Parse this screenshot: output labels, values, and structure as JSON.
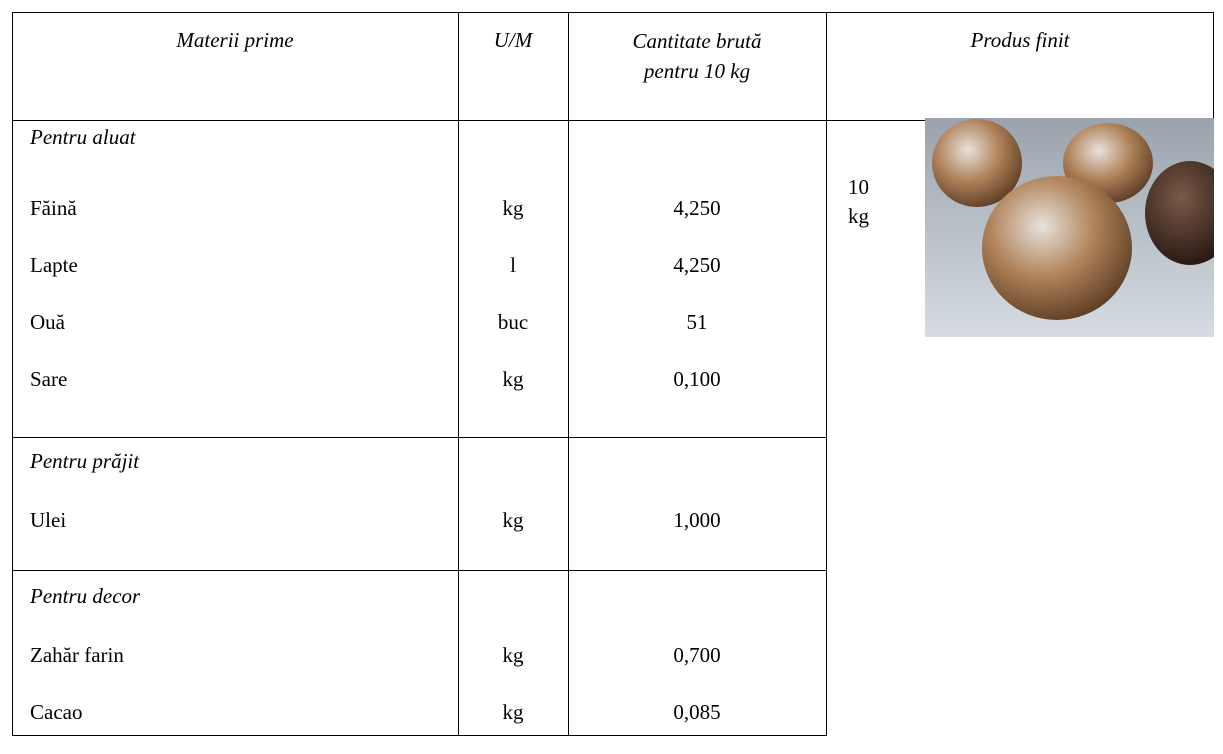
{
  "table": {
    "header": [
      "Materii prime",
      "U/M",
      "Cantitate brută pentru 10 kg",
      "Produs finit"
    ],
    "groups": [
      {
        "title": "Pentru aluat",
        "rows": [
          [
            "Făină",
            "kg",
            "4,250"
          ],
          [
            "Lapte",
            "l",
            "4,250"
          ],
          [
            "Ouă",
            "buc",
            "51"
          ],
          [
            "Sare",
            "kg",
            "0,100"
          ]
        ]
      },
      {
        "title": "Pentru prăjit",
        "rows": [
          [
            "Ulei",
            "kg",
            "1,000"
          ]
        ]
      },
      {
        "title": "Pentru decor",
        "rows": [
          [
            "Zahăr farin",
            "kg",
            "0,700"
          ],
          [
            "Cacao",
            "kg",
            "0,085"
          ]
        ]
      }
    ],
    "product": {
      "quantity": "10",
      "unit": "kg"
    }
  }
}
